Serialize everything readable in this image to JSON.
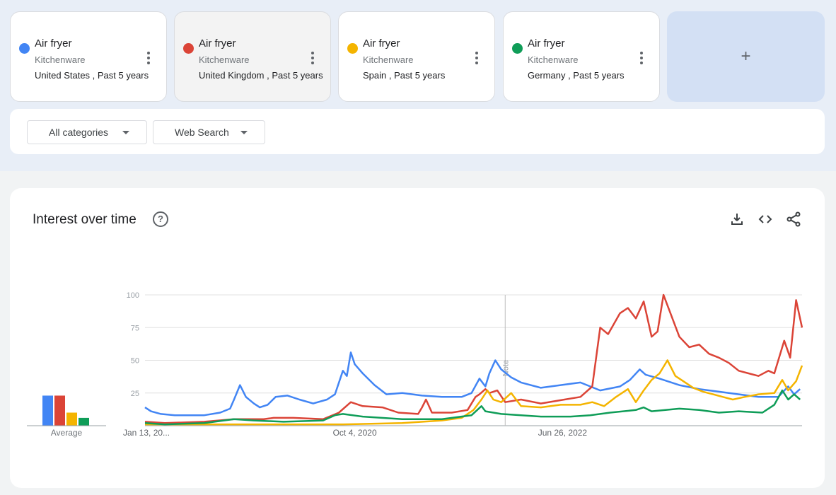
{
  "cards": [
    {
      "term": "Air fryer",
      "category": "Kitchenware",
      "meta": "United States , Past 5 years",
      "color": "#4285f4"
    },
    {
      "term": "Air fryer",
      "category": "Kitchenware",
      "meta": "United Kingdom , Past 5 years",
      "color": "#db4437"
    },
    {
      "term": "Air fryer",
      "category": "Kitchenware",
      "meta": "Spain , Past 5 years",
      "color": "#f4b400"
    },
    {
      "term": "Air fryer",
      "category": "Kitchenware",
      "meta": "Germany , Past 5 years",
      "color": "#0f9d58"
    }
  ],
  "add_label": "+",
  "filters": {
    "category": "All categories",
    "search_type": "Web Search"
  },
  "panel": {
    "title": "Interest over time",
    "help": "?"
  },
  "chart_data": {
    "type": "line",
    "x_tick_labels": [
      "Jan 13, 20...",
      "Oct 4, 2020",
      "Jun 26, 2022"
    ],
    "y_ticks": [
      100,
      75,
      50,
      25
    ],
    "ylim": [
      0,
      100
    ],
    "note_label": "Note",
    "average_label": "Average",
    "averages": [
      {
        "color": "#4285f4",
        "value": 23
      },
      {
        "color": "#db4437",
        "value": 23
      },
      {
        "color": "#f4b400",
        "value": 10
      },
      {
        "color": "#0f9d58",
        "value": 6
      }
    ],
    "series": [
      {
        "color": "#4285f4",
        "values": [
          [
            0,
            14
          ],
          [
            3,
            11
          ],
          [
            8,
            9
          ],
          [
            15,
            8
          ],
          [
            30,
            8
          ],
          [
            38,
            10
          ],
          [
            43,
            13
          ],
          [
            45,
            20
          ],
          [
            48,
            31
          ],
          [
            51,
            22
          ],
          [
            55,
            17
          ],
          [
            58,
            14
          ],
          [
            62,
            16
          ],
          [
            66,
            22
          ],
          [
            72,
            23
          ],
          [
            78,
            20
          ],
          [
            85,
            17
          ],
          [
            92,
            20
          ],
          [
            96,
            24
          ],
          [
            100,
            42
          ],
          [
            102,
            38
          ],
          [
            104,
            56
          ],
          [
            106,
            47
          ],
          [
            110,
            40
          ],
          [
            116,
            31
          ],
          [
            122,
            24
          ],
          [
            130,
            25
          ],
          [
            140,
            23
          ],
          [
            150,
            22
          ],
          [
            160,
            22
          ],
          [
            165,
            25
          ],
          [
            169,
            36
          ],
          [
            172,
            30
          ],
          [
            174,
            40
          ],
          [
            177,
            50
          ],
          [
            180,
            43
          ],
          [
            185,
            37
          ],
          [
            190,
            33
          ],
          [
            200,
            29
          ],
          [
            210,
            31
          ],
          [
            220,
            33
          ],
          [
            230,
            27
          ],
          [
            240,
            30
          ],
          [
            245,
            35
          ],
          [
            250,
            43
          ],
          [
            253,
            39
          ],
          [
            260,
            36
          ],
          [
            270,
            31
          ],
          [
            280,
            28
          ],
          [
            290,
            26
          ],
          [
            300,
            24
          ],
          [
            310,
            22
          ],
          [
            320,
            22
          ],
          [
            325,
            30
          ],
          [
            328,
            24
          ],
          [
            331,
            28
          ]
        ]
      },
      {
        "color": "#db4437",
        "values": [
          [
            0,
            3
          ],
          [
            10,
            2
          ],
          [
            30,
            3
          ],
          [
            45,
            5
          ],
          [
            52,
            5
          ],
          [
            60,
            5
          ],
          [
            65,
            6
          ],
          [
            75,
            6
          ],
          [
            90,
            5
          ],
          [
            98,
            10
          ],
          [
            104,
            18
          ],
          [
            110,
            15
          ],
          [
            120,
            14
          ],
          [
            128,
            10
          ],
          [
            138,
            9
          ],
          [
            140,
            14
          ],
          [
            142,
            20
          ],
          [
            145,
            10
          ],
          [
            155,
            10
          ],
          [
            163,
            12
          ],
          [
            167,
            22
          ],
          [
            169,
            24
          ],
          [
            172,
            28
          ],
          [
            174,
            25
          ],
          [
            178,
            27
          ],
          [
            182,
            18
          ],
          [
            190,
            20
          ],
          [
            200,
            17
          ],
          [
            212,
            20
          ],
          [
            220,
            22
          ],
          [
            226,
            30
          ],
          [
            230,
            75
          ],
          [
            234,
            70
          ],
          [
            240,
            86
          ],
          [
            244,
            90
          ],
          [
            248,
            82
          ],
          [
            252,
            95
          ],
          [
            256,
            68
          ],
          [
            259,
            72
          ],
          [
            262,
            100
          ],
          [
            265,
            88
          ],
          [
            270,
            68
          ],
          [
            275,
            60
          ],
          [
            280,
            62
          ],
          [
            285,
            55
          ],
          [
            290,
            52
          ],
          [
            295,
            48
          ],
          [
            300,
            42
          ],
          [
            305,
            40
          ],
          [
            310,
            38
          ],
          [
            315,
            42
          ],
          [
            318,
            40
          ],
          [
            320,
            50
          ],
          [
            323,
            65
          ],
          [
            326,
            52
          ],
          [
            329,
            96
          ],
          [
            332,
            75
          ]
        ]
      },
      {
        "color": "#f4b400",
        "values": [
          [
            0,
            1
          ],
          [
            50,
            1
          ],
          [
            100,
            1
          ],
          [
            130,
            2
          ],
          [
            150,
            4
          ],
          [
            160,
            6
          ],
          [
            166,
            12
          ],
          [
            170,
            20
          ],
          [
            173,
            27
          ],
          [
            176,
            20
          ],
          [
            180,
            18
          ],
          [
            185,
            25
          ],
          [
            190,
            15
          ],
          [
            200,
            14
          ],
          [
            210,
            16
          ],
          [
            220,
            16
          ],
          [
            226,
            18
          ],
          [
            232,
            15
          ],
          [
            238,
            22
          ],
          [
            244,
            28
          ],
          [
            248,
            18
          ],
          [
            252,
            27
          ],
          [
            256,
            35
          ],
          [
            260,
            40
          ],
          [
            264,
            50
          ],
          [
            268,
            38
          ],
          [
            272,
            34
          ],
          [
            277,
            29
          ],
          [
            282,
            26
          ],
          [
            287,
            24
          ],
          [
            292,
            22
          ],
          [
            297,
            20
          ],
          [
            303,
            22
          ],
          [
            310,
            24
          ],
          [
            318,
            25
          ],
          [
            322,
            35
          ],
          [
            325,
            27
          ],
          [
            329,
            34
          ],
          [
            332,
            46
          ]
        ]
      },
      {
        "color": "#0f9d58",
        "values": [
          [
            0,
            2
          ],
          [
            10,
            1
          ],
          [
            30,
            2
          ],
          [
            45,
            5
          ],
          [
            55,
            4
          ],
          [
            70,
            3
          ],
          [
            90,
            4
          ],
          [
            96,
            8
          ],
          [
            100,
            9
          ],
          [
            110,
            7
          ],
          [
            130,
            5
          ],
          [
            150,
            5
          ],
          [
            165,
            8
          ],
          [
            170,
            15
          ],
          [
            172,
            11
          ],
          [
            180,
            9
          ],
          [
            190,
            8
          ],
          [
            200,
            7
          ],
          [
            215,
            7
          ],
          [
            225,
            8
          ],
          [
            235,
            10
          ],
          [
            248,
            12
          ],
          [
            252,
            14
          ],
          [
            256,
            11
          ],
          [
            270,
            13
          ],
          [
            280,
            12
          ],
          [
            290,
            10
          ],
          [
            300,
            11
          ],
          [
            312,
            10
          ],
          [
            318,
            16
          ],
          [
            322,
            27
          ],
          [
            325,
            20
          ],
          [
            328,
            24
          ],
          [
            331,
            20
          ]
        ]
      }
    ]
  }
}
